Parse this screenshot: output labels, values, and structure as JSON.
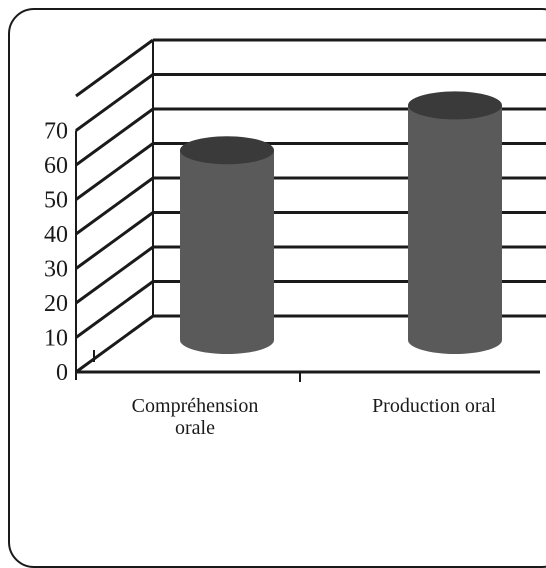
{
  "chart_data": {
    "type": "bar",
    "style": "3d-cylinder",
    "categories": [
      [
        "Compréhension",
        "orale"
      ],
      [
        "Production oral"
      ]
    ],
    "values": [
      55,
      68
    ],
    "yticks": [
      "0",
      "10",
      "20",
      "30",
      "40",
      "50",
      "60",
      "70"
    ],
    "ylim": [
      0,
      80
    ],
    "grid": true,
    "legend": "none",
    "colors": {
      "bar_body": "#5a5a5a",
      "bar_top": "#3a3a3a",
      "grid": "#1a1a1a"
    }
  }
}
